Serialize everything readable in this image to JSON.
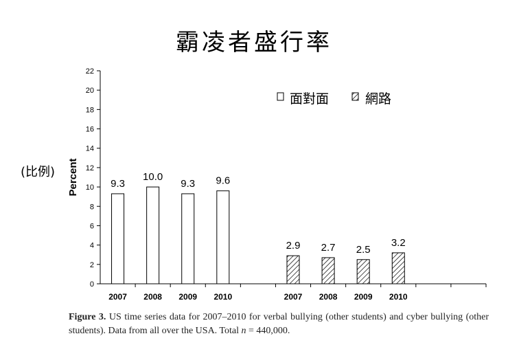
{
  "slide_title": "霸凌者盛行率",
  "side_note": "(比例)",
  "chart_data": {
    "type": "bar",
    "ylabel": "Percent",
    "ylim": [
      0,
      22
    ],
    "yticks": [
      "0",
      "2",
      "4",
      "6",
      "8",
      "10",
      "12",
      "14",
      "16",
      "18",
      "20",
      "22"
    ],
    "legend_position": "top-right",
    "groups": [
      {
        "name": "面對面",
        "fill": "none",
        "categories": [
          "2007",
          "2008",
          "2009",
          "2010"
        ],
        "values": [
          9.3,
          10.0,
          9.3,
          9.6
        ],
        "labels": [
          "9.3",
          "10.0",
          "9.3",
          "9.6"
        ]
      },
      {
        "name": "網路",
        "fill": "hatched",
        "categories": [
          "2007",
          "2008",
          "2009",
          "2010"
        ],
        "values": [
          2.9,
          2.7,
          2.5,
          3.2
        ],
        "labels": [
          "2.9",
          "2.7",
          "2.5",
          "3.2"
        ]
      }
    ]
  },
  "caption": {
    "label": "Figure 3.",
    "text_before": " US time series data for 2007–2010 for verbal bullying (other students) and cyber bullying (other students). Data from all over the USA. Total ",
    "n_symbol": "n",
    "text_after": " = 440,000."
  }
}
